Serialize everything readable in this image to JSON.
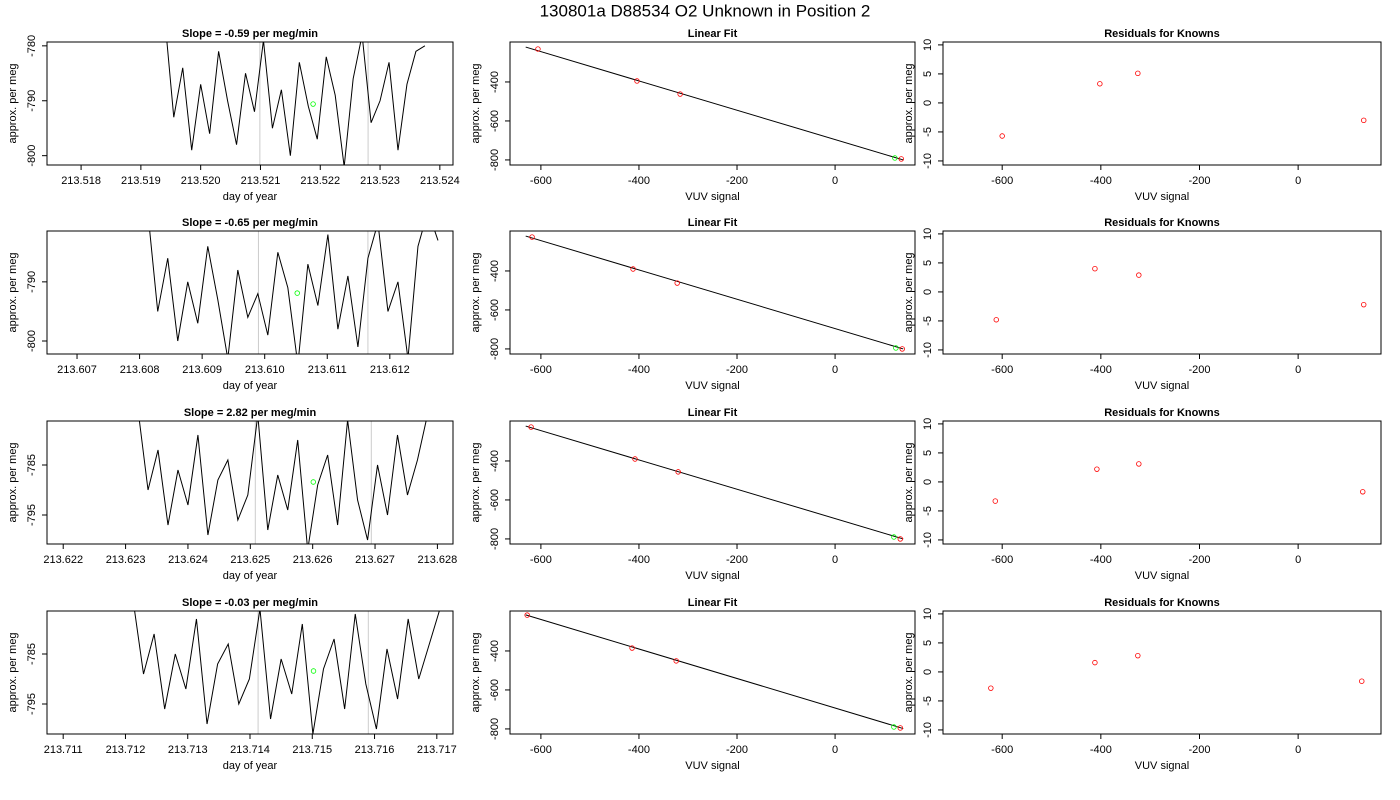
{
  "title": "130801a     D88534   O2 Unknown in Position  2",
  "chart_data": [
    {
      "type": "line",
      "title": "Slope =  -0.59  per meg/min",
      "xlabel": "day of year",
      "ylabel": "approx. per meg",
      "x": [
        213.5194,
        213.51955,
        213.5197,
        213.51985,
        213.52,
        213.52015,
        213.5203,
        213.52045,
        213.5206,
        213.52075,
        213.5209,
        213.52105,
        213.5212,
        213.52135,
        213.5215,
        213.52165,
        213.5218,
        213.52195,
        213.5221,
        213.52225,
        213.5224,
        213.52255,
        213.5227,
        213.52285,
        213.523,
        213.52315,
        213.5233,
        213.52345,
        213.5236,
        213.52375
      ],
      "series": [
        {
          "color": "#000000",
          "values": [
            -775,
            -793,
            -784,
            -799,
            -787,
            -796,
            -781,
            -790,
            -798,
            -785,
            -792,
            -779,
            -795,
            -788,
            -800,
            -783,
            -791,
            -797,
            -782,
            -789,
            -802,
            -786,
            -778,
            -794,
            -790,
            -783,
            -799,
            -787,
            -781,
            -780
          ]
        }
      ],
      "unknown": {
        "x": 213.52188,
        "y": -790.6,
        "color": "#00ff00"
      },
      "vlines": [
        213.52099,
        213.5228
      ],
      "vline_color": "#cccccc",
      "xlim": [
        213.51743,
        213.52422
      ],
      "ylim": [
        -801.7,
        -779.3
      ],
      "xticks": [
        213.518,
        213.519,
        {
          "value": 213.52,
          "label": "213.520"
        },
        213.521,
        213.522,
        213.523,
        213.524
      ],
      "yticks": [
        -780,
        -790,
        -800
      ]
    },
    {
      "type": "scatter",
      "title": "Linear Fit",
      "xlabel": "VUV signal",
      "ylabel": "approx. per meg",
      "x": [
        -606,
        -404,
        -316,
        135
      ],
      "series": [
        {
          "color": "#ff0000",
          "values": [
            -231,
            -395,
            -462,
            -795
          ]
        }
      ],
      "unknown": {
        "x": 122,
        "y": -790,
        "color": "#00ff00"
      },
      "fit": {
        "x": [
          -631,
          139
        ],
        "y": [
          -221,
          -800
        ],
        "color": "#000000"
      },
      "xlim": [
        -663,
        163
      ],
      "ylim": [
        -826,
        -195
      ],
      "xticks": [
        -600,
        -400,
        -200,
        0
      ],
      "yticks": [
        -400,
        -600,
        -800
      ]
    },
    {
      "type": "scatter",
      "title": "Residuals for Knowns",
      "xlabel": "VUV signal",
      "ylabel": "approx. per meg",
      "x": [
        -600,
        -402,
        -325,
        133
      ],
      "series": [
        {
          "color": "#ff0000",
          "values": [
            -5.7,
            3.3,
            5.1,
            -3.0
          ]
        }
      ],
      "xlim": [
        -720,
        168
      ],
      "ylim": [
        -10.7,
        10.5
      ],
      "xticks": [
        -600,
        -400,
        -200,
        0
      ],
      "yticks": [
        10,
        5,
        0,
        -5,
        -10
      ]
    },
    {
      "type": "line",
      "title": "Slope =  -0.65  per meg/min",
      "xlabel": "day of year",
      "ylabel": "approx. per meg",
      "x": [
        213.60813,
        213.60829,
        213.60845,
        213.60861,
        213.60877,
        213.60893,
        213.60909,
        213.60925,
        213.60941,
        213.60957,
        213.60973,
        213.60989,
        213.61005,
        213.61021,
        213.61037,
        213.61053,
        213.61069,
        213.61085,
        213.61101,
        213.61117,
        213.61133,
        213.61149,
        213.61165,
        213.61181,
        213.61197,
        213.61213,
        213.61229,
        213.61245,
        213.61261,
        213.61277
      ],
      "series": [
        {
          "color": "#000000",
          "values": [
            -778,
            -795,
            -786,
            -800,
            -790,
            -797,
            -784,
            -793,
            -803,
            -788,
            -796,
            -792,
            -799,
            -785,
            -791,
            -804,
            -787,
            -794,
            -782,
            -798,
            -789,
            -801,
            -786,
            -780,
            -795,
            -790,
            -803,
            -784,
            -778,
            -783
          ]
        }
      ],
      "unknown": {
        "x": 213.61052,
        "y": -791.9,
        "color": "#00ff00"
      },
      "vlines": [
        213.6099,
        213.61165
      ],
      "vline_color": "#cccccc",
      "xlim": [
        213.60652,
        213.61301
      ],
      "ylim": [
        -802.2,
        -781.4
      ],
      "xticks": [
        213.607,
        213.608,
        213.609,
        {
          "value": 213.61,
          "label": "213.610"
        },
        213.611,
        213.612
      ],
      "yticks": [
        -790,
        -800
      ]
    },
    {
      "type": "scatter",
      "title": "Linear Fit",
      "xlabel": "VUV signal",
      "ylabel": "approx. per meg",
      "x": [
        -618,
        -412,
        -322,
        137
      ],
      "series": [
        {
          "color": "#ff0000",
          "values": [
            -226,
            -390,
            -462,
            -800
          ]
        }
      ],
      "unknown": {
        "x": 124,
        "y": -795,
        "color": "#00ff00"
      },
      "fit": {
        "x": [
          -631,
          139
        ],
        "y": [
          -221,
          -800
        ],
        "color": "#000000"
      },
      "xlim": [
        -663,
        163
      ],
      "ylim": [
        -826,
        -195
      ],
      "xticks": [
        -600,
        -400,
        -200,
        0
      ],
      "yticks": [
        -400,
        -600,
        -800
      ]
    },
    {
      "type": "scatter",
      "title": "Residuals for Knowns",
      "xlabel": "VUV signal",
      "ylabel": "approx. per meg",
      "x": [
        -612,
        -412,
        -323,
        133
      ],
      "series": [
        {
          "color": "#ff0000",
          "values": [
            -4.8,
            4.0,
            2.9,
            -2.2
          ]
        }
      ],
      "xlim": [
        -720,
        168
      ],
      "ylim": [
        -10.7,
        10.5
      ],
      "xticks": [
        -600,
        -400,
        -200,
        0
      ],
      "yticks": [
        10,
        5,
        0,
        -5,
        -10
      ]
    },
    {
      "type": "line",
      "title": "Slope =  2.82  per meg/min",
      "xlabel": "day of year",
      "ylabel": "approx. per meg",
      "x": [
        213.6232,
        213.62336,
        213.62352,
        213.62368,
        213.62384,
        213.624,
        213.62416,
        213.62432,
        213.62448,
        213.62464,
        213.6248,
        213.62496,
        213.62512,
        213.62528,
        213.62544,
        213.6256,
        213.62576,
        213.62592,
        213.62608,
        213.62624,
        213.6264,
        213.62656,
        213.62672,
        213.62688,
        213.62704,
        213.6272,
        213.62736,
        213.62752,
        213.62768,
        213.62784
      ],
      "series": [
        {
          "color": "#000000",
          "values": [
            -774,
            -790,
            -782,
            -797,
            -786,
            -793,
            -779,
            -799,
            -788,
            -784,
            -796,
            -791,
            -775,
            -798,
            -787,
            -794,
            -780,
            -802,
            -789,
            -783,
            -797,
            -776,
            -792,
            -800,
            -785,
            -795,
            -779,
            -791,
            -784,
            -775
          ]
        }
      ],
      "unknown": {
        "x": 213.62601,
        "y": -788.4,
        "color": "#00ff00"
      },
      "vlines": [
        213.62508,
        213.62694
      ],
      "vline_color": "#cccccc",
      "xlim": [
        213.62174,
        213.62825
      ],
      "ylim": [
        -800.8,
        -776.2
      ],
      "xticks": [
        213.622,
        213.623,
        213.624,
        213.625,
        213.626,
        213.627,
        213.628
      ],
      "yticks": [
        -785,
        -795
      ]
    },
    {
      "type": "scatter",
      "title": "Linear Fit",
      "xlabel": "VUV signal",
      "ylabel": "approx. per meg",
      "x": [
        -620,
        -408,
        -320,
        133
      ],
      "series": [
        {
          "color": "#ff0000",
          "values": [
            -226,
            -390,
            -456,
            -800
          ]
        }
      ],
      "unknown": {
        "x": 120,
        "y": -790,
        "color": "#00ff00"
      },
      "fit": {
        "x": [
          -631,
          139
        ],
        "y": [
          -221,
          -800
        ],
        "color": "#000000"
      },
      "xlim": [
        -663,
        163
      ],
      "ylim": [
        -826,
        -195
      ],
      "xticks": [
        -600,
        -400,
        -200,
        0
      ],
      "yticks": [
        -400,
        -600,
        -800
      ]
    },
    {
      "type": "scatter",
      "title": "Residuals for Knowns",
      "xlabel": "VUV signal",
      "ylabel": "approx. per meg",
      "x": [
        -614,
        -408,
        -323,
        131
      ],
      "series": [
        {
          "color": "#ff0000",
          "values": [
            -3.3,
            2.2,
            3.1,
            -1.7
          ]
        }
      ],
      "xlim": [
        -720,
        168
      ],
      "ylim": [
        -10.7,
        10.5
      ],
      "xticks": [
        -600,
        -400,
        -200,
        0
      ],
      "yticks": [
        10,
        5,
        0,
        -5,
        -10
      ]
    },
    {
      "type": "line",
      "title": "Slope =  -0.03  per meg/min",
      "xlabel": "day of year",
      "ylabel": "approx. per meg",
      "x": [
        213.71212,
        213.71229,
        213.71246,
        213.71263,
        213.7128,
        213.71297,
        213.71314,
        213.71331,
        213.71348,
        213.71365,
        213.71382,
        213.71399,
        213.71416,
        213.71433,
        213.7145,
        213.71467,
        213.71484,
        213.71501,
        213.71518,
        213.71535,
        213.71552,
        213.71569,
        213.71586,
        213.71603,
        213.7162,
        213.71637,
        213.71654,
        213.71671,
        213.71688,
        213.71705
      ],
      "series": [
        {
          "color": "#000000",
          "values": [
            -774,
            -789,
            -781,
            -796,
            -785,
            -792,
            -778,
            -799,
            -787,
            -783,
            -795,
            -790,
            -776,
            -798,
            -786,
            -793,
            -779,
            -801,
            -788,
            -782,
            -796,
            -777,
            -791,
            -800,
            -784,
            -794,
            -778,
            -790,
            -783,
            -776
          ]
        }
      ],
      "unknown": {
        "x": 213.71502,
        "y": -788.4,
        "color": "#00ff00"
      },
      "vlines": [
        213.71413,
        213.7159
      ],
      "vline_color": "#cccccc",
      "xlim": [
        213.71074,
        213.71726
      ],
      "ylim": [
        -801,
        -776.4
      ],
      "xticks": [
        213.711,
        213.712,
        213.713,
        213.714,
        213.715,
        213.716,
        213.717
      ],
      "yticks": [
        -785,
        -795
      ]
    },
    {
      "type": "scatter",
      "title": "Linear Fit",
      "xlabel": "VUV signal",
      "ylabel": "approx. per meg",
      "x": [
        -628,
        -414,
        -324,
        133
      ],
      "series": [
        {
          "color": "#ff0000",
          "values": [
            -216,
            -385,
            -451,
            -795
          ]
        }
      ],
      "unknown": {
        "x": 120,
        "y": -790,
        "color": "#00ff00"
      },
      "fit": {
        "x": [
          -631,
          139
        ],
        "y": [
          -215,
          -798
        ],
        "color": "#000000"
      },
      "xlim": [
        -663,
        163
      ],
      "ylim": [
        -826,
        -195
      ],
      "xticks": [
        -600,
        -400,
        -200,
        0
      ],
      "yticks": [
        -400,
        -600,
        -800
      ]
    },
    {
      "type": "scatter",
      "title": "Residuals for Knowns",
      "xlabel": "VUV signal",
      "ylabel": "approx. per meg",
      "x": [
        -623,
        -412,
        -325,
        129
      ],
      "series": [
        {
          "color": "#ff0000",
          "values": [
            -2.8,
            1.6,
            2.8,
            -1.6
          ]
        }
      ],
      "xlim": [
        -720,
        168
      ],
      "ylim": [
        -10.7,
        10.5
      ],
      "xticks": [
        -600,
        -400,
        -200,
        0
      ],
      "yticks": [
        10,
        5,
        0,
        -5,
        -10
      ]
    }
  ]
}
